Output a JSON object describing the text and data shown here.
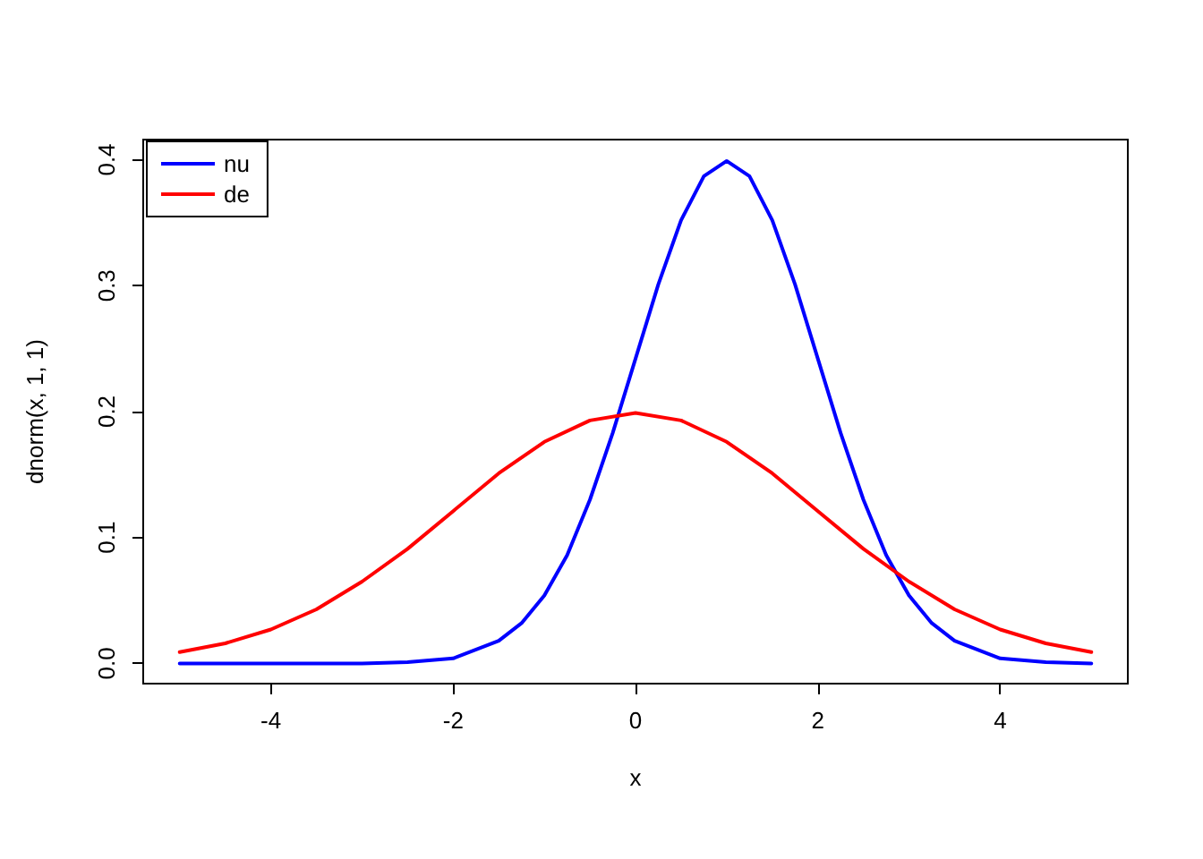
{
  "chart_data": {
    "type": "line",
    "xlabel": "x",
    "ylabel": "dnorm(x, 1, 1)",
    "xlim": [
      -5.4,
      5.4
    ],
    "xticks": [
      -4,
      -2,
      0,
      2,
      4
    ],
    "ylim": [
      -0.016,
      0.416
    ],
    "yticks": [
      {
        "value": 0,
        "label": "0.0"
      },
      {
        "value": 0.1,
        "label": "0.1"
      },
      {
        "value": 0.2,
        "label": "0.2"
      },
      {
        "value": 0.3,
        "label": "0.3"
      },
      {
        "value": 0.4,
        "label": "0.4"
      }
    ],
    "series": [
      {
        "name": "nu",
        "color": "#0000ff",
        "x": [
          -5,
          -4.5,
          -4,
          -3.5,
          -3,
          -2.5,
          -2,
          -1.5,
          -1.25,
          -1,
          -0.75,
          -0.5,
          -0.25,
          0,
          0.25,
          0.5,
          0.75,
          1,
          1.25,
          1.5,
          1.75,
          2,
          2.25,
          2.5,
          2.75,
          3,
          3.25,
          3.5,
          4,
          4.5,
          5
        ],
        "values": [
          0,
          0,
          0,
          0,
          0,
          0.001,
          0.004,
          0.018,
          0.032,
          0.054,
          0.086,
          0.13,
          0.183,
          0.242,
          0.301,
          0.352,
          0.387,
          0.399,
          0.387,
          0.352,
          0.301,
          0.242,
          0.183,
          0.13,
          0.086,
          0.054,
          0.032,
          0.018,
          0.004,
          0.001,
          0
        ]
      },
      {
        "name": "de",
        "color": "#ff0000",
        "x": [
          -5,
          -4.5,
          -4,
          -3.5,
          -3,
          -2.5,
          -2,
          -1.5,
          -1,
          -0.5,
          0,
          0.5,
          1,
          1.5,
          2,
          2.5,
          3,
          3.5,
          4,
          4.5,
          5
        ],
        "values": [
          0.009,
          0.016,
          0.027,
          0.043,
          0.065,
          0.091,
          0.121,
          0.151,
          0.176,
          0.193,
          0.199,
          0.193,
          0.176,
          0.151,
          0.121,
          0.091,
          0.065,
          0.043,
          0.027,
          0.016,
          0.009
        ]
      }
    ],
    "legend": "top left",
    "grid": false,
    "marker": "none",
    "line_style": "solid"
  }
}
